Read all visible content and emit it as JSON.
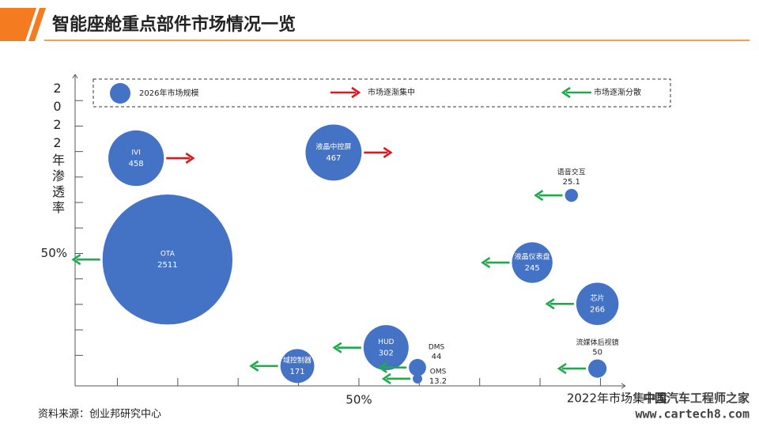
{
  "chart_data": {
    "type": "bubble",
    "title": "智能座舱重点部件市场情况一览",
    "source": "资料来源：创业邦研究中心",
    "watermark": [
      "中国汽车工程师之家",
      "www.cartech8.com"
    ],
    "xlabel": "2022年市场集中度",
    "ylabel": "2022年渗透率",
    "xlim": [
      3,
      94
    ],
    "ylim": [
      24,
      85
    ],
    "xticks": [
      {
        "value": 50,
        "label": "50%"
      }
    ],
    "yticks": [
      {
        "value": 50,
        "label": "50%"
      }
    ],
    "xminorticks": [
      10,
      20,
      30,
      40,
      50,
      60,
      70,
      80,
      90
    ],
    "yminorticks": [
      30,
      35,
      40,
      45,
      50,
      55,
      60,
      65,
      70,
      75,
      80
    ],
    "series": [
      {
        "name": "2026年市场规模",
        "color": "#4472c4",
        "labels": [
          "IVI",
          "液晶中控屏",
          "OTA",
          "语音交互",
          "液晶仪表盘",
          "芯片",
          "域控制器",
          "HUD",
          "DMS",
          "OMS",
          "流媒体后视镜"
        ],
        "x": [
          13.1,
          45.8,
          18.3,
          85.2,
          78.7,
          89.5,
          39.8,
          54.5,
          59.7,
          59.7,
          89.5
        ],
        "values": [
          68.7,
          69.8,
          48.8,
          61.4,
          48.2,
          40.1,
          27.9,
          31.5,
          27.6,
          25.4,
          27.4
        ],
        "sizes": [
          458,
          467,
          2511,
          25.1,
          245,
          266,
          171,
          302,
          44,
          13.2,
          50
        ],
        "trends": [
          "right",
          "right",
          "left",
          "left",
          "left",
          "left",
          "left",
          "left",
          "left",
          "left",
          "left"
        ]
      }
    ],
    "legend": [
      {
        "label": "市场逐渐集中",
        "direction": "right",
        "color": "#e8141b"
      },
      {
        "label": "市场逐渐分散",
        "direction": "left",
        "color": "#1faa4b"
      }
    ]
  }
}
